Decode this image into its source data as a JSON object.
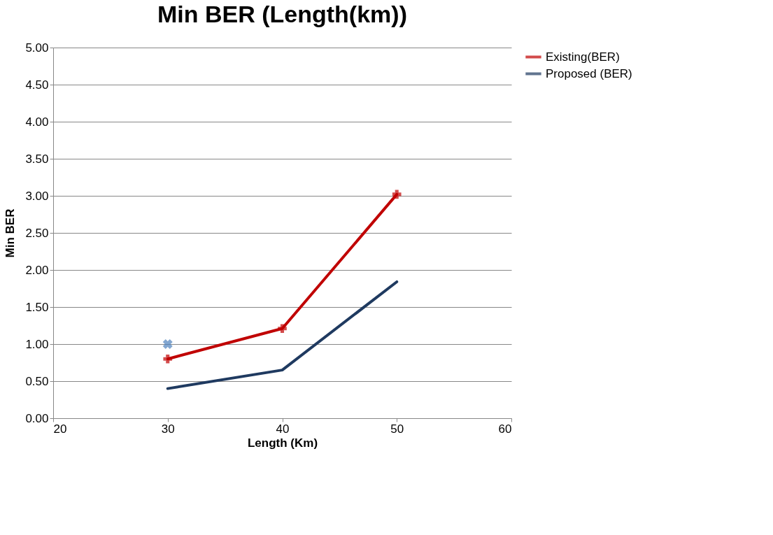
{
  "chart_data": {
    "type": "line",
    "title": "Min BER (Length(km))",
    "xlabel": "Length (Km)",
    "ylabel": "Min BER",
    "x": [
      30,
      40,
      50
    ],
    "series": [
      {
        "name": "Existing(BER)",
        "color": "#c00000",
        "values": [
          0.8,
          1.21,
          3.02
        ],
        "marker": "cross"
      },
      {
        "name": "Proposed (BER)",
        "color": "#1f3a60",
        "values": [
          0.4,
          0.65,
          1.84
        ],
        "marker": "none"
      },
      {
        "type": "scatter",
        "color": "#4f81bd",
        "x": [
          30
        ],
        "values": [
          1.0
        ],
        "marker": "cross"
      }
    ],
    "xlim": [
      20,
      60
    ],
    "xticks": [
      20,
      30,
      40,
      50,
      60
    ],
    "ylim": [
      0,
      5
    ],
    "yticks": [
      {
        "value": 0,
        "label": "0.00"
      },
      {
        "value": 0.5,
        "label": "0.50"
      },
      {
        "value": 1,
        "label": "1.00"
      },
      {
        "value": 1.5,
        "label": "1.50"
      },
      {
        "value": 2,
        "label": "2.00"
      },
      {
        "value": 2.5,
        "label": "2.50"
      },
      {
        "value": 3,
        "label": "3.00"
      },
      {
        "value": 3.5,
        "label": "3.50"
      },
      {
        "value": 4,
        "label": "4.00"
      },
      {
        "value": 4.5,
        "label": "4.50"
      },
      {
        "value": 5,
        "label": "5.00"
      }
    ],
    "grid": "y",
    "legend": "right"
  }
}
